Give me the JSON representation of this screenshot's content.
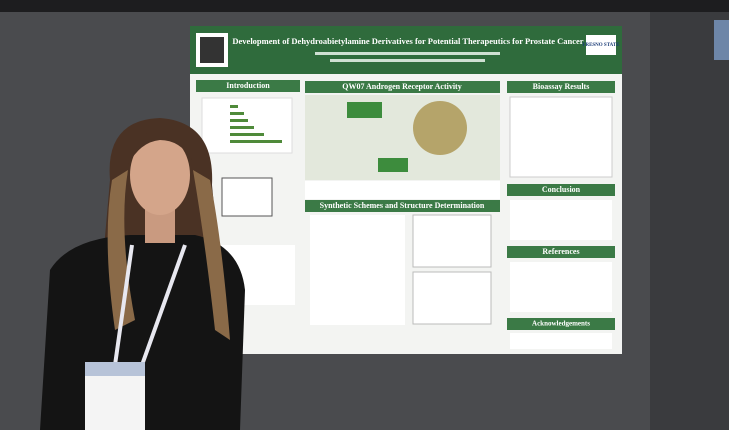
{
  "poster": {
    "title": "Development of Dehydroabietylamine Derivatives for Potential Therapeutics for Prostate Cancer",
    "logo": "FRESNO STATE",
    "sections": [
      "Introduction",
      "QW07 Androgen Receptor Activity",
      "Synthetic Schemes and Structure Determination",
      "Bioassay Results",
      "Conclusion",
      "References",
      "Acknowledgements"
    ]
  }
}
